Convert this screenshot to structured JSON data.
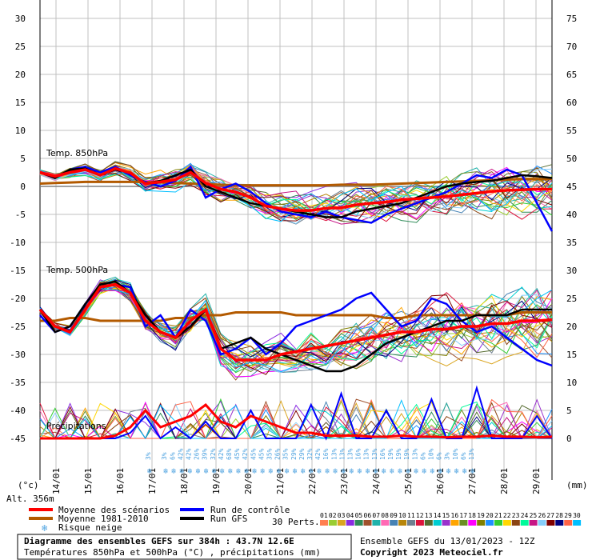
{
  "chart_data": {
    "type": "line",
    "section_labels": {
      "t850": "Temp. 850hPa",
      "t500": "Temp. 500hPa",
      "precip": "Précipitations"
    },
    "left_axis_unit": "(°c)",
    "right_axis_unit": "(mm)",
    "altitude": "Alt. 356m",
    "left_ticks": [
      30,
      25,
      20,
      15,
      10,
      5,
      0,
      -5,
      -10,
      -15,
      -20,
      -25,
      -30,
      -35,
      -40,
      -45
    ],
    "right_ticks": [
      75,
      70,
      65,
      60,
      55,
      50,
      45,
      40,
      35,
      30,
      25,
      20,
      15,
      10,
      5,
      0
    ],
    "dates": [
      "14/01",
      "15/01",
      "16/01",
      "17/01",
      "18/01",
      "19/01",
      "20/01",
      "21/01",
      "22/01",
      "23/01",
      "24/01",
      "25/01",
      "26/01",
      "27/01",
      "28/01",
      "29/01"
    ],
    "snow_risk": [
      "3%",
      "",
      "3%",
      "6%",
      "42%",
      "42%",
      "26%",
      "39%",
      "32%",
      "42%",
      "68%",
      "45%",
      "42%",
      "45%",
      "45%",
      "35%",
      "26%",
      "35%",
      "29%",
      "29%",
      "32%",
      "42%",
      "16%",
      "13%",
      "13%",
      "13%",
      "16%",
      "13%",
      "13%",
      "16%",
      "19%",
      "19%",
      "19%",
      "13%",
      "6%",
      "10%",
      "6%",
      "3%",
      "10%",
      "6%",
      "13%"
    ],
    "x_hours": [
      0,
      384
    ],
    "series": [
      {
        "name": "Moyenne des scénarios",
        "color": "#ff0000",
        "t850": [
          2.5,
          1.8,
          2.5,
          3.0,
          2.0,
          3.2,
          2.4,
          0.5,
          0.8,
          1.2,
          2.5,
          0.6,
          -0.5,
          -1.0,
          -2.0,
          -3.5,
          -4.0,
          -4.3,
          -4.3,
          -3.9,
          -3.8,
          -3.3,
          -3.0,
          -2.8,
          -2.4,
          -2.2,
          -2.0,
          -1.8,
          -1.5,
          -1.2,
          -0.9,
          -0.7,
          -0.6,
          -0.5,
          -0.5
        ],
        "t500": [
          -22,
          -25,
          -26,
          -22,
          -18,
          -17.5,
          -19,
          -24,
          -26,
          -27,
          -24,
          -22,
          -29,
          -31,
          -31,
          -31,
          -30,
          -29.5,
          -29,
          -28.5,
          -28,
          -27.5,
          -27,
          -26.5,
          -26,
          -26,
          -25.5,
          -25.5,
          -25,
          -25,
          -24.5,
          -24.5,
          -24,
          -24,
          -23.8
        ],
        "precip": [
          0,
          0,
          0,
          0,
          0,
          0.5,
          2,
          5,
          2,
          3,
          4,
          6,
          3,
          2,
          4,
          3,
          2,
          1,
          1,
          0.5,
          0.5,
          0.5,
          0.3,
          0.3,
          0.5,
          0.3,
          0.3,
          0.2,
          0.3,
          0.3,
          0.5,
          0.3,
          0.3,
          0.2,
          0.3
        ]
      },
      {
        "name": "Moyenne 1981-2010",
        "color": "#b35a00",
        "t850": [
          0.5,
          0.6,
          0.7,
          0.8,
          0.8,
          0.8,
          0.8,
          0.8,
          0.7,
          0.6,
          0.5,
          0.4,
          0.3,
          0.2,
          0.2,
          0.2,
          0.2,
          0.2,
          0.2,
          0.2,
          0.3,
          0.3,
          0.3,
          0.4,
          0.5,
          0.6,
          0.7,
          0.8,
          0.9,
          1.0,
          1.1,
          1.2,
          1.3,
          1.3,
          1.3
        ],
        "t500": [
          -24,
          -24,
          -23.5,
          -23.5,
          -24,
          -24,
          -24,
          -24,
          -24,
          -23.5,
          -23.5,
          -23,
          -23,
          -22.5,
          -22.5,
          -22.5,
          -22.5,
          -23,
          -23,
          -23,
          -23,
          -23,
          -23,
          -23.5,
          -23.5,
          -23,
          -23,
          -23,
          -23,
          -23,
          -23,
          -23,
          -22.5,
          -22.5,
          -22.5
        ]
      },
      {
        "name": "Run de contrôle",
        "color": "#0000ff",
        "t850": [
          2.5,
          1.5,
          3.0,
          3.5,
          2.5,
          3.5,
          2.0,
          0.8,
          0.0,
          1.0,
          3.5,
          -2.0,
          -0.5,
          0.5,
          -1.0,
          -3.0,
          -4.5,
          -5.0,
          -5.5,
          -4.5,
          -5.5,
          -6.0,
          -6.5,
          -5.0,
          -4.0,
          -3.0,
          -2.0,
          -1.0,
          0.5,
          2.0,
          1.5,
          3.0,
          2.0,
          -3.0,
          -8.0
        ],
        "t500": [
          -23,
          -26,
          -25,
          -21,
          -18,
          -17.5,
          -18,
          -25,
          -23,
          -27,
          -22,
          -24,
          -30,
          -29,
          -27,
          -30,
          -28,
          -25,
          -24,
          -23,
          -22,
          -20,
          -19,
          -22,
          -25,
          -24,
          -20,
          -21,
          -24,
          -26,
          -25,
          -27,
          -29,
          -31,
          -32
        ],
        "precip": [
          0,
          0,
          0,
          0,
          0,
          0,
          1,
          4,
          0,
          2,
          0,
          3,
          0,
          0,
          5,
          0,
          0,
          0,
          6,
          0,
          8,
          0,
          0,
          5,
          0,
          0,
          7,
          0,
          0,
          9,
          0,
          0,
          0,
          4,
          0
        ]
      },
      {
        "name": "Run GFS",
        "color": "#000000",
        "t850": [
          2.5,
          1.5,
          3.0,
          3.2,
          2.0,
          3.0,
          2.5,
          0.5,
          1.0,
          2.0,
          3.0,
          0.0,
          -1.0,
          -2.0,
          -3.0,
          -3.5,
          -4.0,
          -4.5,
          -5.0,
          -5.5,
          -5.5,
          -4.5,
          -4.0,
          -3.5,
          -3.0,
          -2.0,
          -1.0,
          0.0,
          0.5,
          0.8,
          1.0,
          1.5,
          2.0,
          1.8,
          1.5
        ],
        "t500": [
          -22,
          -26,
          -25,
          -21,
          -17.5,
          -17,
          -19,
          -23,
          -26,
          -27,
          -25,
          -22,
          -29,
          -28,
          -27,
          -29,
          -30,
          -31,
          -32,
          -33,
          -33,
          -32,
          -30,
          -28,
          -27,
          -26,
          -25,
          -24,
          -24,
          -23,
          -23,
          -23,
          -22,
          -22,
          -22
        ]
      }
    ]
  },
  "legend": {
    "mean": "Moyenne des scénarios",
    "clim": "Moyenne 1981-2010",
    "snow": "Risque neige",
    "control": "Run de contrôle",
    "gfs": "Run GFS",
    "perts_label": "30 Perts.",
    "perts": [
      "01",
      "02",
      "03",
      "04",
      "05",
      "06",
      "07",
      "08",
      "09",
      "10",
      "11",
      "12",
      "13",
      "14",
      "15",
      "16",
      "17",
      "18",
      "19",
      "20",
      "21",
      "22",
      "23",
      "24",
      "25",
      "26",
      "27",
      "28",
      "29",
      "30"
    ],
    "pert_colors": [
      "#ff7f50",
      "#9acd32",
      "#daa520",
      "#8a2be2",
      "#2e8b57",
      "#a0522d",
      "#20b2aa",
      "#ff69b4",
      "#4682b4",
      "#b8860b",
      "#708090",
      "#dc143c",
      "#556b2f",
      "#00ced1",
      "#9932cc",
      "#ffa500",
      "#6b8e23",
      "#ff00ff",
      "#808000",
      "#1e90ff",
      "#32cd32",
      "#ffd700",
      "#8b4513",
      "#00fa9a",
      "#c71585",
      "#87cefa",
      "#800000",
      "#000080",
      "#ff6347",
      "#00bfff"
    ]
  },
  "footer": {
    "title": "Diagramme des ensembles GEFS sur 384h : 43.7N 12.6E",
    "subtitle": "Températures 850hPa et 500hPa (°C) , précipitations (mm)",
    "run": "Ensemble GEFS du 13/01/2023 - 12Z",
    "copyright": "Copyright 2023 Meteociel.fr"
  }
}
